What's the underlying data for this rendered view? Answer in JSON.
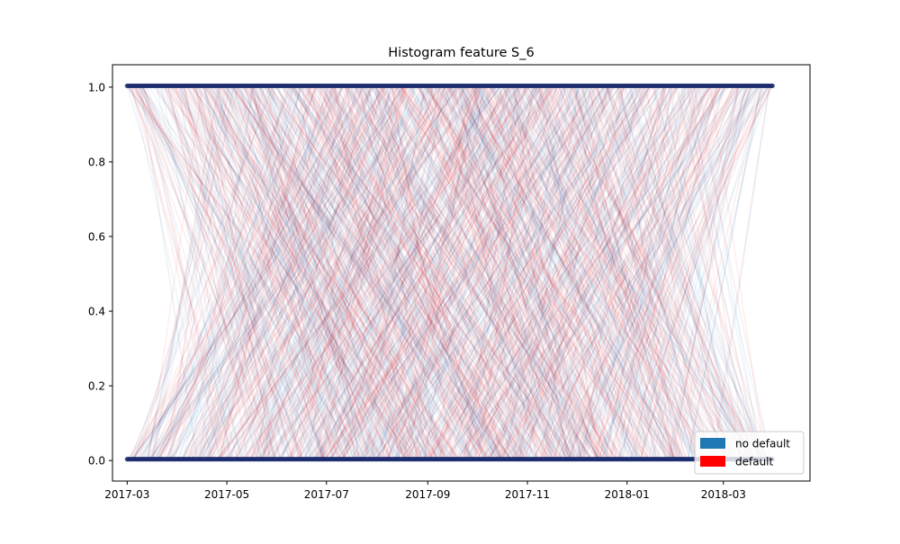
{
  "chart_data": {
    "type": "line",
    "title": "Histogram feature S_6",
    "xlabel": "",
    "ylabel": "",
    "x_axis": {
      "type": "date",
      "range": [
        "2017-02-20",
        "2018-04-23"
      ],
      "ticks": [
        "2017-03-01",
        "2017-05-01",
        "2017-07-01",
        "2017-09-01",
        "2017-11-01",
        "2018-01-01",
        "2018-03-01"
      ],
      "tick_labels": [
        "2017-03",
        "2017-05",
        "2017-07",
        "2017-09",
        "2017-11",
        "2018-01",
        "2018-03"
      ]
    },
    "y_axis": {
      "range": [
        -0.055,
        1.06
      ],
      "ticks": [
        0.0,
        0.2,
        0.4,
        0.6,
        0.8,
        1.0
      ],
      "tick_labels": [
        "0.0",
        "0.2",
        "0.4",
        "0.6",
        "0.8",
        "1.0"
      ]
    },
    "x_data_range": [
      "2017-03-01",
      "2018-03-31"
    ],
    "y_levels": [
      0.0,
      1.0
    ],
    "grid": false,
    "legend": {
      "placement": "lower right",
      "entries": [
        {
          "label": "no default",
          "color": "#1f77b4"
        },
        {
          "label": "default",
          "color": "#ff0000"
        }
      ]
    },
    "series": [
      {
        "name": "no default",
        "color": "#1f77b4",
        "endpoint_color": "#1a2a6c",
        "alpha": 0.07
      },
      {
        "name": "default",
        "color": "#ff0000",
        "endpoint_color": "#1a2a6c",
        "alpha": 0.07
      }
    ]
  }
}
